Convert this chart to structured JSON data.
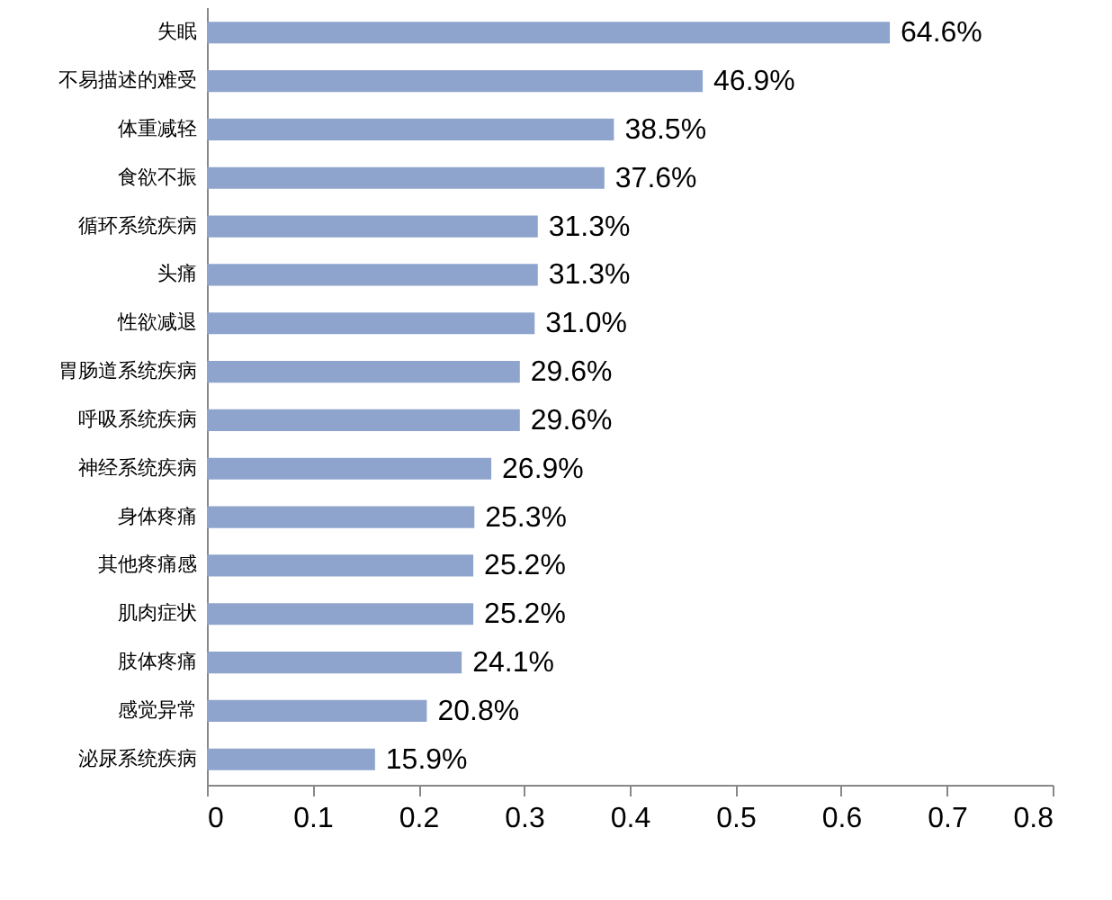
{
  "chart_data": {
    "type": "bar",
    "orientation": "horizontal",
    "categories": [
      "失眠",
      "不易描述的难受",
      "体重减轻",
      "食欲不振",
      "循环系统疾病",
      "头痛",
      "性欲减退",
      "胃肠道系统疾病",
      "呼吸系统疾病",
      "神经系统疾病",
      "身体疼痛",
      "其他疼痛感",
      "肌肉症状",
      "肢体疼痛",
      "感觉异常",
      "泌尿系统疾病"
    ],
    "values": [
      0.646,
      0.469,
      0.385,
      0.376,
      0.313,
      0.313,
      0.31,
      0.296,
      0.296,
      0.269,
      0.253,
      0.252,
      0.252,
      0.241,
      0.208,
      0.159
    ],
    "value_labels": [
      "64.6%",
      "46.9%",
      "38.5%",
      "37.6%",
      "31.3%",
      "31.3%",
      "31.0%",
      "29.6%",
      "29.6%",
      "26.9%",
      "25.3%",
      "25.2%",
      "25.2%",
      "24.1%",
      "20.8%",
      "15.9%"
    ],
    "color": "#8ea4cc",
    "xlim": [
      0,
      0.8
    ],
    "xticks": [
      0,
      0.1,
      0.2,
      0.3,
      0.4,
      0.5,
      0.6,
      0.7,
      0.8
    ]
  }
}
